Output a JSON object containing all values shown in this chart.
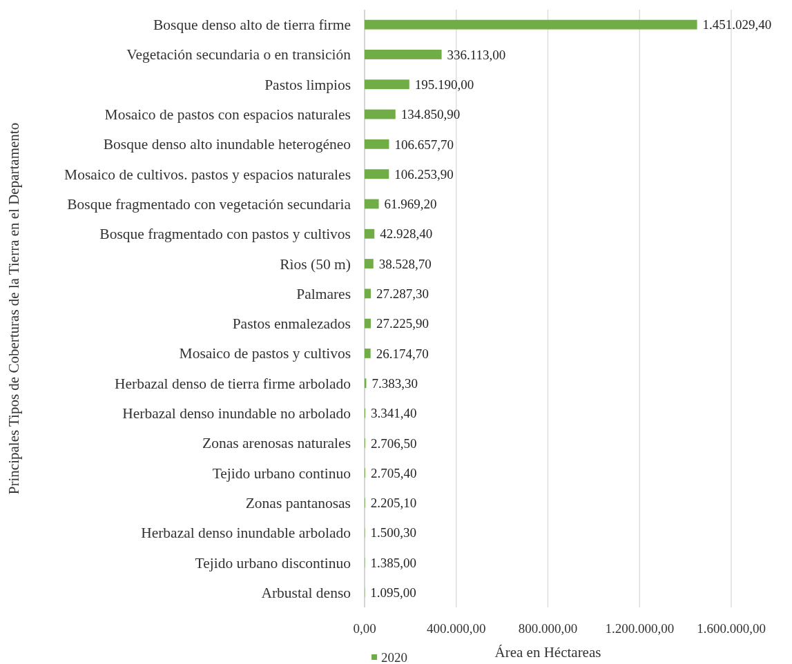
{
  "chart_data": {
    "type": "bar",
    "orientation": "horizontal",
    "ylabel": "Principales Tipos de Coberturas de la Tierra en el Departamento",
    "xlabel": "Área en Héctareas",
    "categories": [
      "Bosque denso alto de tierra firme",
      "Vegetación secundaria o en transición",
      "Pastos limpios",
      "Mosaico de pastos con espacios naturales",
      "Bosque denso alto inundable heterogéneo",
      "Mosaico de cultivos. pastos y espacios naturales",
      "Bosque fragmentado con vegetación secundaria",
      "Bosque fragmentado con pastos y cultivos",
      "Rìos (50 m)",
      "Palmares",
      "Pastos enmalezados",
      "Mosaico de pastos y cultivos",
      "Herbazal denso de tierra firme arbolado",
      "Herbazal denso inundable no arbolado",
      "Zonas arenosas naturales",
      "Tejido urbano continuo",
      "Zonas pantanosas",
      "Herbazal denso inundable arbolado",
      "Tejido urbano discontinuo",
      "Arbustal denso"
    ],
    "series": [
      {
        "name": "2020",
        "color": "#70ad47",
        "values": [
          1451029.4,
          336113,
          195190,
          134850.9,
          106657.7,
          106253.9,
          61969.2,
          42928.4,
          38528.7,
          27287.3,
          27225.9,
          26174.7,
          7383.3,
          3341.4,
          2706.5,
          2705.4,
          2205.1,
          1500.3,
          1385,
          1095
        ],
        "value_labels": [
          "1.451.029,40",
          "336.113,00",
          "195.190,00",
          "134.850,90",
          "106.657,70",
          "106.253,90",
          "61.969,20",
          "42.928,40",
          "38.528,70",
          "27.287,30",
          "27.225,90",
          "26.174,70",
          "7.383,30",
          "3.341,40",
          "2.706,50",
          "2.705,40",
          "2.205,10",
          "1.500,30",
          "1.385,00",
          "1.095,00"
        ]
      }
    ],
    "xlim": [
      0,
      1600000
    ],
    "xticks": [
      {
        "value": 0,
        "label": "0,00"
      },
      {
        "value": 400000,
        "label": "400.000,00"
      },
      {
        "value": 800000,
        "label": "800.000,00"
      },
      {
        "value": 1200000,
        "label": "1.200.000,00"
      },
      {
        "value": 1600000,
        "label": "1.600.000,00"
      }
    ],
    "grid": "x",
    "legend": "bottom"
  }
}
